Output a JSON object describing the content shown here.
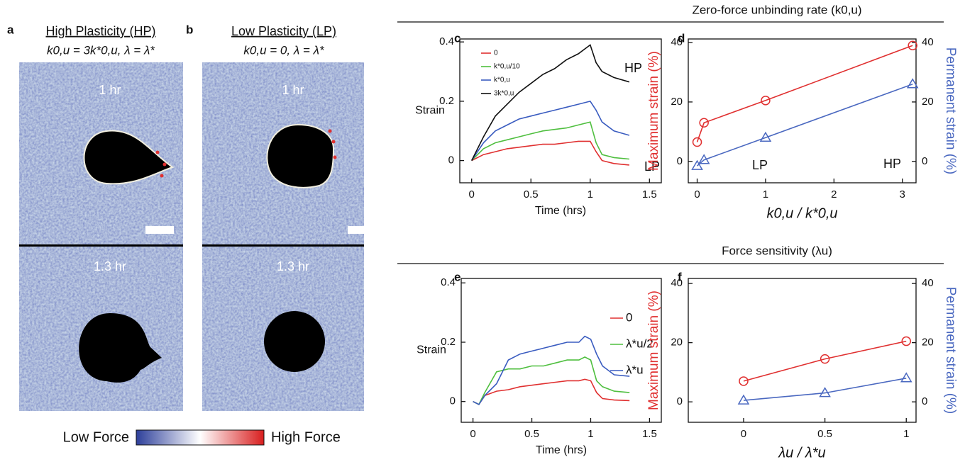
{
  "panels": [
    {
      "label": "a",
      "title": "High Plasticity (HP)",
      "subtitle": "k0,u = 3k*0,u, λ = λ*",
      "times": [
        "1 hr",
        "1.3 hr"
      ]
    },
    {
      "label": "b",
      "title": "Low Plasticity (LP)",
      "subtitle": "k0,u = 0, λ = λ*",
      "times": [
        "1 hr",
        "1.3 hr"
      ]
    }
  ],
  "colorbar": {
    "low": "Low Force",
    "high": "High Force"
  },
  "section_titles": [
    "Zero-force unbinding rate (k0,u)",
    "Force sensitivity (λu)"
  ],
  "chart_data": [
    {
      "type": "line",
      "label": "c",
      "ylabel": "Strain",
      "xlabel": "Time (hrs)",
      "x": [
        0,
        0.1,
        0.2,
        0.3,
        0.4,
        0.5,
        0.6,
        0.7,
        0.8,
        0.9,
        1.0,
        1.05,
        1.1,
        1.2,
        1.33
      ],
      "series": [
        {
          "name": "0",
          "color": "#e03030",
          "values": [
            0,
            0.02,
            0.03,
            0.04,
            0.045,
            0.05,
            0.055,
            0.055,
            0.06,
            0.065,
            0.065,
            0.03,
            0.0,
            -0.01,
            -0.015
          ]
        },
        {
          "name": "k*0,u/10",
          "color": "#4fbf3f",
          "values": [
            0,
            0.04,
            0.06,
            0.07,
            0.08,
            0.09,
            0.1,
            0.105,
            0.11,
            0.12,
            0.13,
            0.06,
            0.02,
            0.01,
            0.005
          ]
        },
        {
          "name": "k*0,u",
          "color": "#3a5cc0",
          "values": [
            0,
            0.06,
            0.1,
            0.12,
            0.14,
            0.15,
            0.16,
            0.17,
            0.18,
            0.19,
            0.2,
            0.17,
            0.13,
            0.1,
            0.085
          ]
        },
        {
          "name": "3k*0,u",
          "color": "#111111",
          "values": [
            0,
            0.08,
            0.15,
            0.19,
            0.23,
            0.26,
            0.29,
            0.31,
            0.34,
            0.36,
            0.39,
            0.33,
            0.3,
            0.28,
            0.265
          ]
        }
      ],
      "annotations": [
        "HP",
        "LP"
      ],
      "xlim": [
        -0.1,
        1.6
      ],
      "xticks": [
        0,
        0.5,
        1,
        1.5
      ],
      "ylim": [
        -0.075,
        0.41
      ],
      "yticks": [
        0,
        0.2,
        0.4
      ]
    },
    {
      "type": "line",
      "label": "d",
      "ylabel": "Maximum strain (%)",
      "y2label": "Permanent strain (%)",
      "xlabel": "k0,u / k*0,u",
      "x": [
        0,
        0.1,
        1,
        3.15
      ],
      "series": [
        {
          "color": "#e03030",
          "marker": "circle",
          "values": [
            6.5,
            13,
            20.5,
            39
          ]
        },
        {
          "color": "#4a68c0",
          "marker": "triangle",
          "axis": "y2",
          "values": [
            -1.5,
            0.5,
            8,
            26
          ]
        }
      ],
      "annotations": [
        "LP",
        "HP"
      ],
      "xlim": [
        -0.13,
        3.2
      ],
      "xticks": [
        0,
        1,
        2,
        3
      ],
      "ylim": [
        -7.2,
        41.2
      ],
      "yticks": [
        0,
        20,
        40
      ],
      "y2lim": [
        -7.2,
        41.2
      ],
      "y2ticks": [
        0,
        20,
        40
      ]
    },
    {
      "type": "line",
      "label": "e",
      "ylabel": "Strain",
      "xlabel": "Time (hrs)",
      "x": [
        0,
        0.05,
        0.1,
        0.2,
        0.3,
        0.4,
        0.5,
        0.6,
        0.7,
        0.8,
        0.9,
        0.95,
        1.0,
        1.05,
        1.1,
        1.2,
        1.33
      ],
      "series": [
        {
          "name": "0",
          "color": "#e03030",
          "values": [
            0,
            -0.01,
            0.02,
            0.035,
            0.04,
            0.05,
            0.055,
            0.06,
            0.065,
            0.07,
            0.07,
            0.075,
            0.07,
            0.03,
            0.01,
            0.005,
            0.003
          ]
        },
        {
          "name": "λ*u/2",
          "color": "#4fbf3f",
          "values": [
            0,
            -0.01,
            0.03,
            0.1,
            0.11,
            0.11,
            0.12,
            0.12,
            0.13,
            0.14,
            0.14,
            0.15,
            0.14,
            0.07,
            0.05,
            0.035,
            0.03
          ]
        },
        {
          "name": "λ*u",
          "color": "#3a5cc0",
          "values": [
            0,
            -0.01,
            0.02,
            0.06,
            0.14,
            0.16,
            0.17,
            0.18,
            0.19,
            0.2,
            0.2,
            0.22,
            0.21,
            0.16,
            0.12,
            0.09,
            0.085
          ]
        }
      ],
      "xlim": [
        -0.1,
        1.6
      ],
      "xticks": [
        0,
        0.5,
        1,
        1.5
      ],
      "ylim": [
        -0.07,
        0.415
      ],
      "yticks": [
        0,
        0.2,
        0.4
      ]
    },
    {
      "type": "line",
      "label": "f",
      "ylabel": "Maximum strain (%)",
      "y2label": "Permanent strain (%)",
      "xlabel": "λu / λ*u",
      "x": [
        0,
        0.5,
        1
      ],
      "series": [
        {
          "color": "#e03030",
          "marker": "circle",
          "values": [
            7,
            14.5,
            20.5
          ]
        },
        {
          "color": "#4a68c0",
          "marker": "triangle",
          "axis": "y2",
          "values": [
            0.5,
            3,
            8
          ]
        }
      ],
      "xlim": [
        -0.34,
        1.06
      ],
      "xticks": [
        0,
        0.5,
        1
      ],
      "ylim": [
        -6.9,
        41.7
      ],
      "yticks": [
        0,
        20,
        40
      ],
      "y2lim": [
        -6.9,
        41.7
      ],
      "y2ticks": [
        0,
        20,
        40
      ]
    }
  ]
}
